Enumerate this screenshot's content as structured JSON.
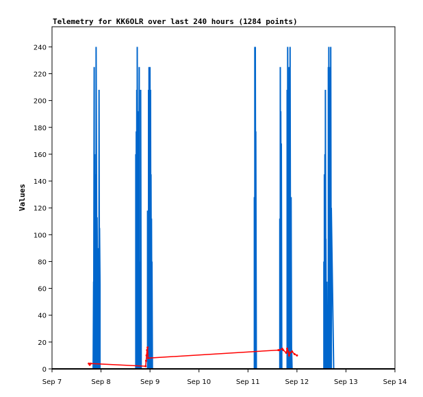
{
  "chart_data": {
    "type": "line",
    "title": "Telemetry for KK6OLR over last 240 hours (1284 points)",
    "xlabel": "",
    "ylabel": "Values",
    "x_tick_labels": [
      "Sep 7",
      "Sep 8",
      "Sep 9",
      "Sep 10",
      "Sep 11",
      "Sep 12",
      "Sep 13",
      "Sep 14"
    ],
    "xlim_days": [
      7,
      14
    ],
    "ylim": [
      0,
      255
    ],
    "y_ticks": [
      0,
      20,
      40,
      60,
      80,
      100,
      120,
      140,
      160,
      180,
      200,
      220,
      240
    ],
    "grid": false,
    "legend": "none",
    "colors": {
      "primary": "#0066cc",
      "secondary": "#ff0000",
      "baseline": "#000000"
    },
    "series": [
      {
        "color": "#0066cc",
        "x": [
          7.84,
          7.85,
          7.85,
          7.86,
          7.86,
          7.87,
          7.87,
          7.88,
          7.88,
          7.9,
          7.9,
          7.92,
          7.92,
          7.94,
          7.94,
          7.95,
          7.95,
          7.96,
          7.96,
          7.97,
          7.97,
          7.98,
          7.98,
          8.0,
          8.0,
          8.02,
          8.02,
          8.04,
          8.04,
          8.05,
          8.05,
          8.07,
          8.07,
          8.65,
          8.65,
          8.71,
          8.71,
          8.72,
          8.72,
          8.73,
          8.73,
          8.74,
          8.74,
          8.75,
          8.75,
          8.76,
          8.76,
          8.77,
          8.77,
          8.78,
          8.78,
          8.79,
          8.79,
          8.8,
          8.8,
          8.81,
          8.81,
          8.82,
          8.82,
          8.83,
          8.83,
          8.84,
          8.84,
          8.85,
          8.85,
          8.86,
          8.86,
          8.87,
          8.87,
          8.95,
          8.95,
          8.96,
          8.96,
          8.97,
          8.97,
          8.98,
          8.98,
          8.99,
          8.99,
          9.0,
          9.0,
          9.01,
          9.01,
          9.02,
          9.02,
          9.03,
          9.03,
          9.04,
          9.04,
          9.05,
          9.05,
          9.06,
          9.06,
          9.07,
          9.07,
          9.08,
          9.08,
          9.09,
          9.09,
          9.1,
          9.1,
          9.11,
          9.11,
          9.12,
          9.12,
          9.13,
          9.13,
          11.13,
          11.13,
          11.14,
          11.14,
          11.15,
          11.15,
          11.16,
          11.16,
          11.17,
          11.17,
          11.18,
          11.18,
          11.19,
          11.19,
          11.65,
          11.65,
          11.66,
          11.66,
          11.67,
          11.67,
          11.68,
          11.68,
          11.69,
          11.69,
          11.7,
          11.7,
          11.71,
          11.71,
          11.72,
          11.72,
          11.73,
          11.73,
          11.74,
          11.74,
          11.8,
          11.8,
          11.81,
          11.81,
          11.82,
          11.82,
          11.83,
          11.83,
          11.84,
          11.84,
          11.85,
          11.85,
          11.86,
          11.86,
          11.87,
          11.87,
          11.88,
          11.88,
          11.89,
          11.89,
          11.9,
          11.9,
          11.91,
          11.91,
          11.92,
          11.92,
          11.93,
          11.93,
          11.94,
          11.94,
          11.95,
          11.95,
          11.96,
          11.96,
          11.97,
          11.97,
          12.15,
          12.15,
          12.55,
          12.55,
          12.56,
          12.56,
          12.57,
          12.57,
          12.58,
          12.58,
          12.59,
          12.59,
          12.6,
          12.6,
          12.61,
          12.61,
          12.62,
          12.62,
          12.63,
          12.63,
          12.64,
          12.64,
          12.65,
          12.65,
          12.66,
          12.66,
          12.67,
          12.67,
          12.68,
          12.68,
          12.69,
          12.69,
          12.7,
          12.7,
          12.75,
          12.75,
          12.76,
          12.76,
          12.77,
          12.77,
          12.78,
          12.78,
          12.79,
          12.79,
          12.8,
          12.8,
          12.81,
          12.81,
          12.82,
          12.82,
          12.83,
          12.83,
          12.84,
          12.84,
          12.85,
          12.85,
          12.86,
          12.86,
          12.87,
          12.87,
          12.88,
          12.88,
          12.89,
          12.89
        ],
        "y": [
          0,
          65,
          0,
          225,
          0,
          160,
          0,
          145,
          0,
          0,
          240,
          0,
          113,
          0,
          48,
          0,
          90,
          0,
          208,
          0,
          105,
          63,
          0,
          0,
          0,
          0,
          0,
          0,
          0,
          0,
          0,
          0,
          0,
          0,
          0,
          0,
          160,
          0,
          177,
          0,
          208,
          0,
          240,
          0,
          192,
          0,
          0,
          128,
          0,
          225,
          0,
          80,
          0,
          49,
          0,
          0,
          208,
          0,
          0,
          0,
          0,
          0,
          0,
          0,
          0,
          0,
          0,
          0,
          0,
          0,
          118,
          0,
          40,
          0,
          208,
          0,
          225,
          0,
          175,
          0,
          225,
          0,
          208,
          0,
          145,
          0,
          112,
          0,
          80,
          0,
          0,
          0,
          0,
          0,
          0,
          0,
          0,
          0,
          0,
          0,
          0,
          0,
          0,
          0,
          0,
          0,
          0,
          0,
          128,
          0,
          240,
          0,
          240,
          0,
          177,
          0,
          0,
          0,
          0,
          0,
          0,
          0,
          112,
          0,
          225,
          0,
          192,
          0,
          168,
          0,
          0,
          0,
          0,
          0,
          0,
          0,
          0,
          0,
          0,
          0,
          0,
          0,
          208,
          0,
          240,
          0,
          160,
          0,
          45,
          0,
          225,
          0,
          176,
          0,
          240,
          0,
          97,
          0,
          128,
          0,
          15,
          0,
          0,
          0,
          0,
          0,
          0,
          0,
          0,
          0,
          0,
          0,
          0,
          0,
          0,
          0,
          0,
          0,
          0,
          0,
          80,
          0,
          145,
          0,
          160,
          0,
          208,
          0,
          97,
          0,
          16,
          0,
          65,
          0,
          17,
          0,
          29,
          0,
          225,
          0,
          240,
          0,
          192,
          0,
          208,
          0,
          225,
          0,
          240,
          0,
          120,
          0,
          0,
          0,
          0,
          0,
          0,
          0,
          0,
          0,
          0,
          0,
          0,
          0,
          0,
          0,
          0,
          0,
          0,
          0,
          0,
          0,
          0,
          0,
          0,
          0,
          0,
          0,
          0,
          0,
          0
        ]
      },
      {
        "color": "#ff0000",
        "x": [
          7.75,
          7.77,
          7.79,
          8.91,
          8.92,
          8.93,
          8.94,
          8.95,
          8.96,
          11.62,
          11.64,
          11.7,
          11.72,
          11.78,
          11.8,
          11.82,
          11.84,
          11.86,
          11.9,
          11.95,
          12.0
        ],
        "y": [
          4,
          3,
          4,
          2,
          6,
          10,
          14,
          16,
          8,
          14,
          14,
          15,
          14,
          12,
          15,
          13,
          10,
          12,
          13,
          11,
          10
        ]
      }
    ]
  }
}
